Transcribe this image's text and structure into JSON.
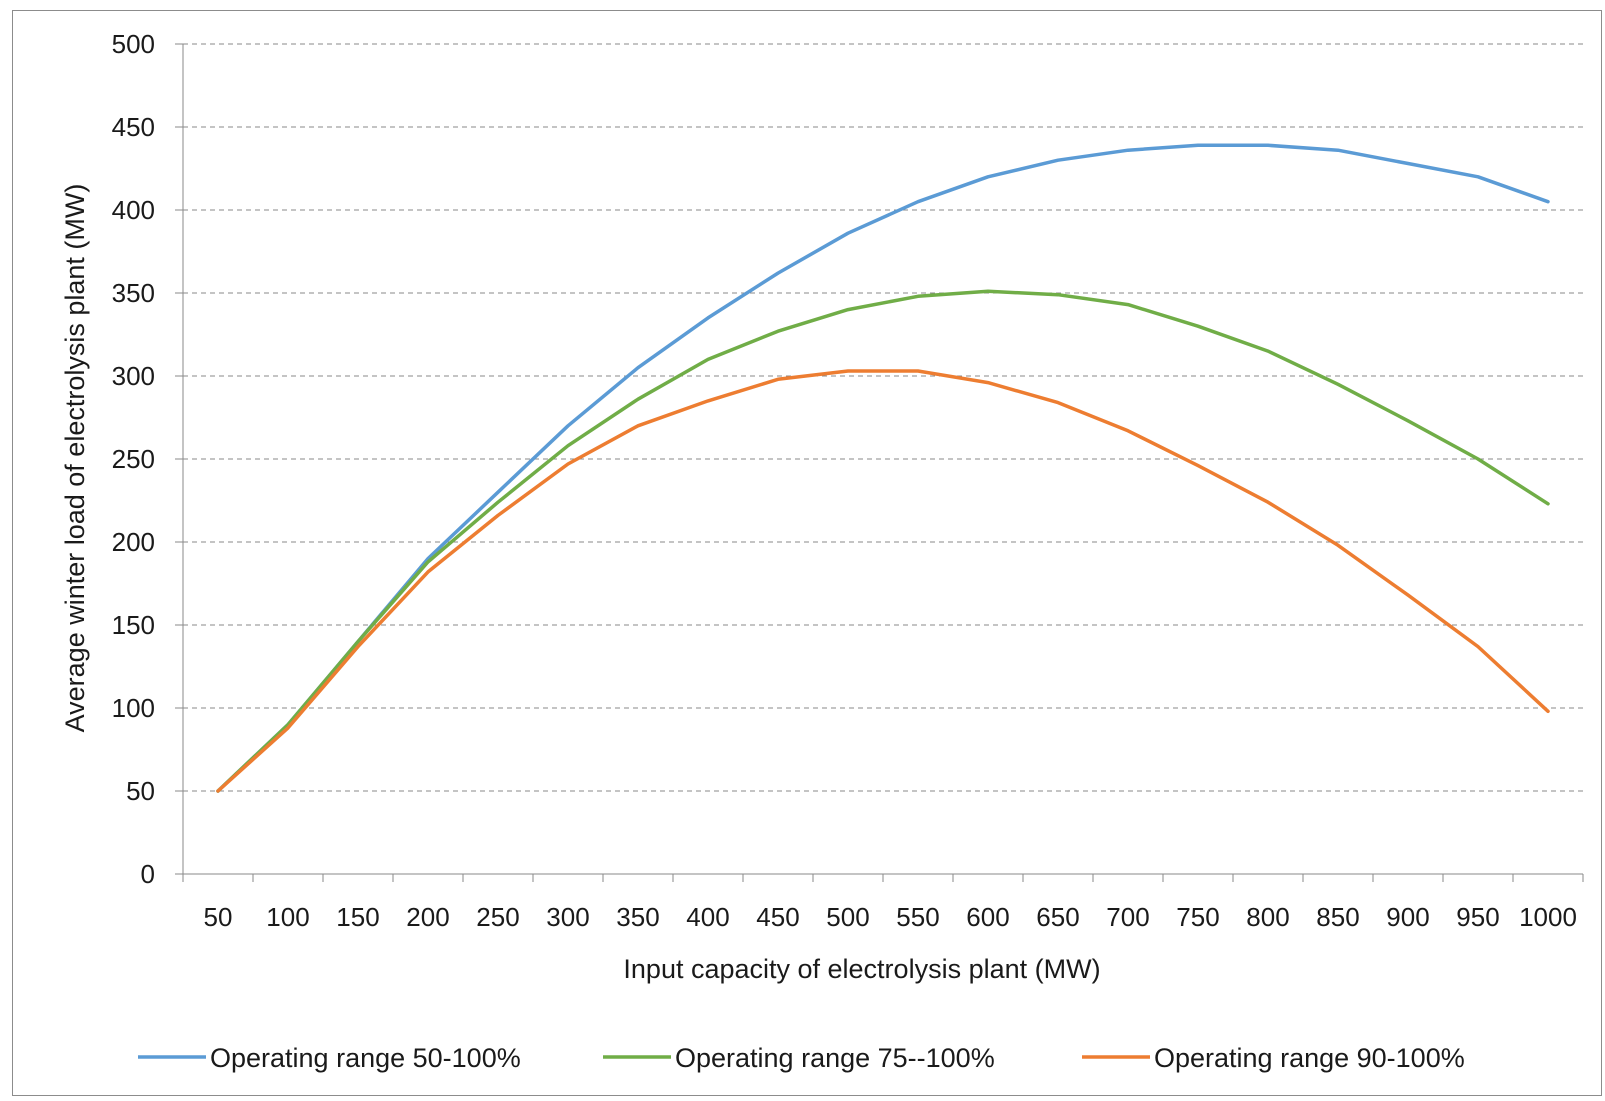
{
  "chart_data": {
    "type": "line",
    "title": "",
    "xlabel": "Input capacity of electrolysis plant (MW)",
    "ylabel": "Average winter load of electrolysis plant (MW)",
    "categories": [
      "50",
      "100",
      "150",
      "200",
      "250",
      "300",
      "350",
      "400",
      "450",
      "500",
      "550",
      "600",
      "650",
      "700",
      "750",
      "800",
      "850",
      "900",
      "950",
      "1000"
    ],
    "x": [
      50,
      100,
      150,
      200,
      250,
      300,
      350,
      400,
      450,
      500,
      550,
      600,
      650,
      700,
      750,
      800,
      850,
      900,
      950,
      1000
    ],
    "ylim": [
      0,
      500
    ],
    "yticks": [
      "0",
      "50",
      "100",
      "150",
      "200",
      "250",
      "300",
      "350",
      "400",
      "450",
      "500"
    ],
    "grid": "horizontal dashed",
    "legend_position": "bottom",
    "series": [
      {
        "name": "Operating range 50-100%",
        "color": "#5b9bd5",
        "values": [
          50,
          90,
          140,
          190,
          230,
          270,
          305,
          335,
          362,
          386,
          405,
          420,
          430,
          436,
          439,
          439,
          436,
          428,
          420,
          405
        ]
      },
      {
        "name": "Operating range 75--100%",
        "color": "#70ad47",
        "values": [
          50,
          90,
          140,
          188,
          224,
          258,
          286,
          310,
          327,
          340,
          348,
          351,
          349,
          343,
          330,
          315,
          295,
          273,
          250,
          223
        ]
      },
      {
        "name": "Operating range 90-100%",
        "color": "#ed7d31",
        "values": [
          50,
          88,
          137,
          182,
          216,
          247,
          270,
          285,
          298,
          303,
          303,
          296,
          284,
          267,
          246,
          224,
          198,
          168,
          137,
          98
        ]
      }
    ]
  }
}
